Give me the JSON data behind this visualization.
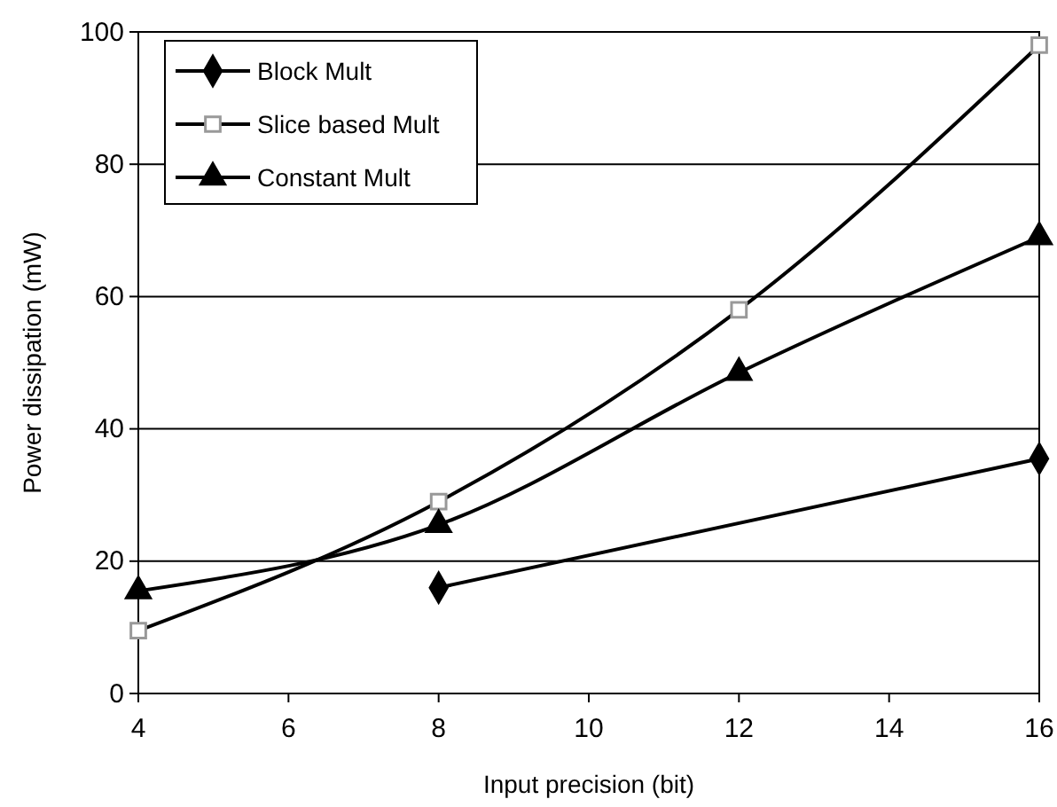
{
  "chart_data": {
    "type": "line",
    "xlabel": "Input precision (bit)",
    "ylabel": "Power dissipation (mW)",
    "xlim": [
      4,
      16
    ],
    "xticks": [
      4,
      6,
      8,
      10,
      12,
      14,
      16
    ],
    "ylim": [
      0,
      100
    ],
    "yticks": [
      0,
      20,
      40,
      60,
      80,
      100
    ],
    "grid": "y",
    "legend": "top left",
    "line_style": "solid",
    "series": [
      {
        "name": "Block Mult",
        "color": "#000000",
        "marker": "diamond",
        "x": [
          8,
          16
        ],
        "values": [
          16,
          35.5
        ]
      },
      {
        "name": "Slice based Mult",
        "color": "#000000",
        "marker": "square",
        "x": [
          4,
          8,
          12,
          16
        ],
        "values": [
          9.5,
          29,
          58,
          98
        ]
      },
      {
        "name": "Constant Mult",
        "color": "#000000",
        "marker": "triangle",
        "x": [
          4,
          8,
          12,
          16
        ],
        "values": [
          15.5,
          25.5,
          48.5,
          69
        ]
      }
    ]
  }
}
